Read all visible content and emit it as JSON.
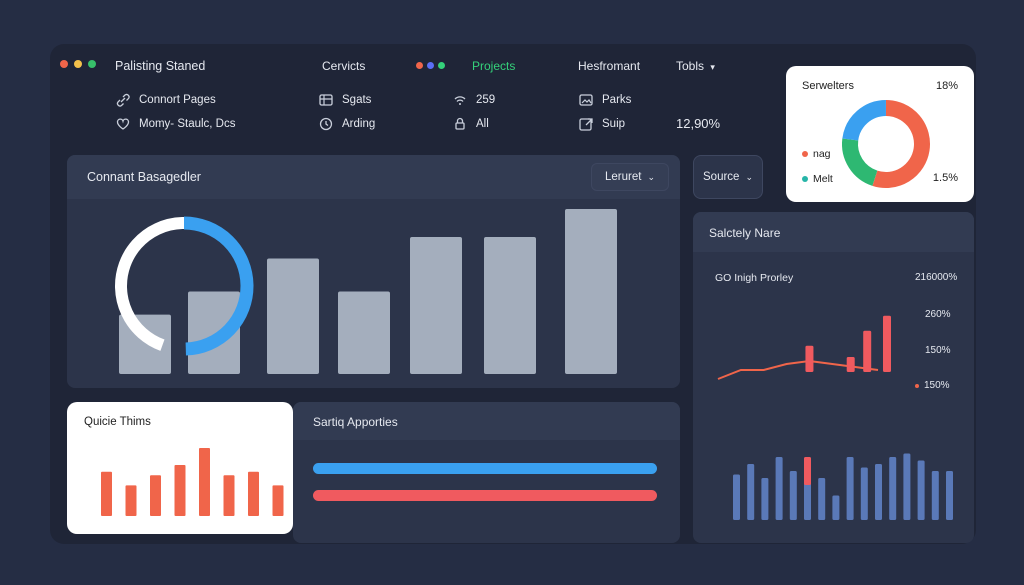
{
  "window": {
    "title": "Palisting Staned"
  },
  "header": {
    "nav_cervicts": "Cervicts",
    "nav_projects": "Projects",
    "nav_hesfromant": "Hesfromant",
    "nav_tobls": "Tobls",
    "items": [
      {
        "icon": "link-icon",
        "label": "Connort Pages"
      },
      {
        "icon": "heart-icon",
        "label": "Momy- Staulc, Dcs"
      },
      {
        "icon": "grid-icon",
        "label": "Sgats"
      },
      {
        "icon": "clock-icon",
        "label": "Arding"
      },
      {
        "icon": "wifi-icon",
        "label": "259"
      },
      {
        "icon": "lock-icon",
        "label": "All"
      },
      {
        "icon": "image-icon",
        "label": "Parks"
      },
      {
        "icon": "external-icon",
        "label": "Suip"
      }
    ],
    "stat": "12,90%"
  },
  "donut_card": {
    "title": "Serwelters",
    "value_top": "18%",
    "value_bottom": "1.5%",
    "legend": [
      {
        "label": "nag",
        "color": "#f0654a"
      },
      {
        "label": "Melt",
        "color": "#26b5a8"
      }
    ],
    "segments": [
      {
        "color": "#f0654a",
        "value": 0.55
      },
      {
        "color": "#2eb872",
        "value": 0.22
      },
      {
        "color": "#3aa0f0",
        "value": 0.23
      }
    ]
  },
  "main_panel": {
    "title": "Connant Basagedler",
    "dropdown": "Leruret",
    "ring_progress": 0.4,
    "bars": [
      0.36,
      0.5,
      0.7,
      0.5,
      0.83,
      0.83,
      1.0
    ]
  },
  "source_button": "Source",
  "right_panel": {
    "title": "Salctely Nare",
    "subtitle": "GO Inigh Prorley",
    "labels": [
      "216000%",
      "260%",
      "150%",
      "150%"
    ],
    "line": [
      0.3,
      0.45,
      0.45,
      0.55,
      0.6,
      0.55,
      0.5,
      0.45
    ],
    "red_bars": [
      {
        "x": 0.53,
        "h": 0.35
      },
      {
        "x": 0.78,
        "h": 0.2
      },
      {
        "x": 0.88,
        "h": 0.55
      },
      {
        "x": 1.0,
        "h": 0.75
      }
    ],
    "blue_bars": [
      0.65,
      0.8,
      0.6,
      0.9,
      0.7,
      0.55,
      0.6,
      0.35,
      0.9,
      0.75,
      0.8,
      0.9,
      0.95,
      0.85,
      0.7,
      0.7
    ]
  },
  "quick_card": {
    "title": "Quicie Thims",
    "bars": [
      0.65,
      0.45,
      0.6,
      0.75,
      1.0,
      0.6,
      0.65,
      0.45,
      0.75
    ]
  },
  "bottom_panel": {
    "title": "Sartiq Apporties",
    "progress_blue": 1.0,
    "progress_red": 1.0
  },
  "colors": {
    "accent_blue": "#3aa0f0",
    "accent_red": "#f0654a",
    "bar_gray": "#a4aebd",
    "projects_green": "#34d17a"
  }
}
